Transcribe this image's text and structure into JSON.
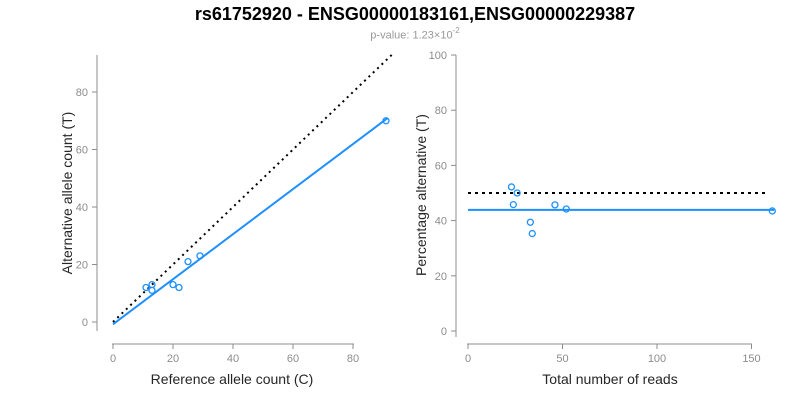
{
  "header": {
    "title": "rs61752920 - ENSG00000183161,ENSG00000229387",
    "pvalue_prefix": "p-value: 1.23×10",
    "pvalue_exponent": "-2"
  },
  "colors": {
    "accent_blue": "#1E90FF",
    "identity_black": "#000000",
    "axis_gray": "#8c8c8c",
    "tick_label_gray": "#8c8c8c",
    "axis_title_color": "#262626",
    "subtitle_gray": "#999999"
  },
  "chart_data": [
    {
      "type": "scatter",
      "panel": "left",
      "xlabel": "Reference allele count (C)",
      "ylabel": "Alternative allele count (T)",
      "xlim": [
        0,
        93
      ],
      "ylim": [
        0,
        93
      ],
      "xticks": [
        0,
        20,
        40,
        60,
        80
      ],
      "yticks": [
        0,
        20,
        40,
        60,
        80
      ],
      "grid": false,
      "points": [
        [
          11,
          12
        ],
        [
          13,
          13
        ],
        [
          13,
          11
        ],
        [
          20,
          13
        ],
        [
          22,
          12
        ],
        [
          25,
          21
        ],
        [
          29,
          23
        ],
        [
          91,
          70
        ]
      ],
      "identity_line": {
        "x1": 0,
        "y1": 0,
        "x2": 93,
        "y2": 93,
        "style": "dotted"
      },
      "fit_line": {
        "x1": 0,
        "y1": -0.8,
        "x2": 91.5,
        "y2": 70.9,
        "style": "solid"
      }
    },
    {
      "type": "scatter",
      "panel": "right",
      "xlabel": "Total number of reads",
      "ylabel": "Percentage alternative (T)",
      "xlim": [
        0,
        163
      ],
      "ylim": [
        0,
        100
      ],
      "xticks": [
        0,
        50,
        100,
        150
      ],
      "yticks": [
        0,
        20,
        40,
        60,
        80,
        100
      ],
      "grid": false,
      "points": [
        [
          23,
          52.2
        ],
        [
          26,
          50.0
        ],
        [
          24,
          45.8
        ],
        [
          33,
          39.4
        ],
        [
          34,
          35.3
        ],
        [
          46,
          45.7
        ],
        [
          52,
          44.2
        ],
        [
          161,
          43.5
        ]
      ],
      "hline_dotted": {
        "y": 50,
        "x1": 0,
        "x2": 159
      },
      "hline_solid": {
        "y": 43.9,
        "x1": 0,
        "x2": 162
      }
    }
  ]
}
